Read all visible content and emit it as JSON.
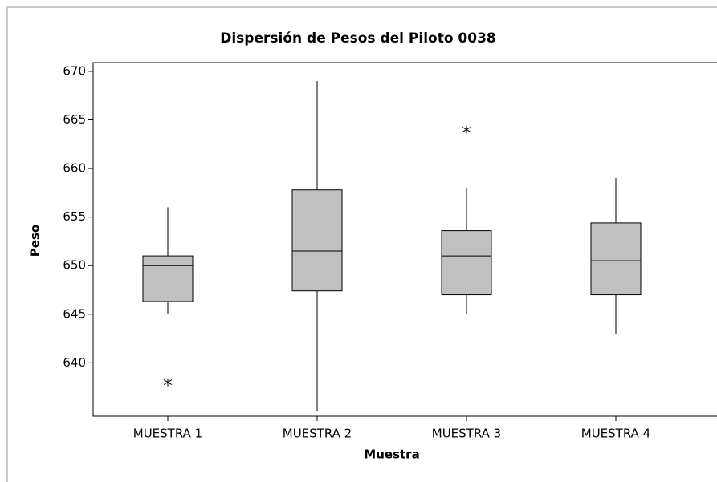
{
  "chart_data": {
    "type": "box",
    "title": "Dispersión de  Pesos del Piloto 0038",
    "x_label": "Muestra",
    "y_label": "Peso",
    "categories": [
      "MUESTRA 1",
      "MUESTRA 2",
      "MUESTRA 3",
      "MUESTRA 4"
    ],
    "color": "#c0c0c0",
    "boxes": [
      {
        "min": 645,
        "q1": 646.3,
        "median": 650,
        "q3": 651,
        "max": 656,
        "outliers": [
          638
        ]
      },
      {
        "min": 635,
        "q1": 647.4,
        "median": 651.5,
        "q3": 657.8,
        "max": 669,
        "outliers": []
      },
      {
        "min": 645,
        "q1": 647,
        "median": 651,
        "q3": 653.6,
        "max": 658,
        "outliers": [
          664
        ]
      },
      {
        "min": 643,
        "q1": 647,
        "median": 650.5,
        "q3": 654.4,
        "max": 659,
        "outliers": []
      }
    ],
    "ylim": [
      634.5,
      670.9
    ],
    "yticks": [
      640,
      645,
      650,
      655,
      660,
      665,
      670
    ]
  }
}
